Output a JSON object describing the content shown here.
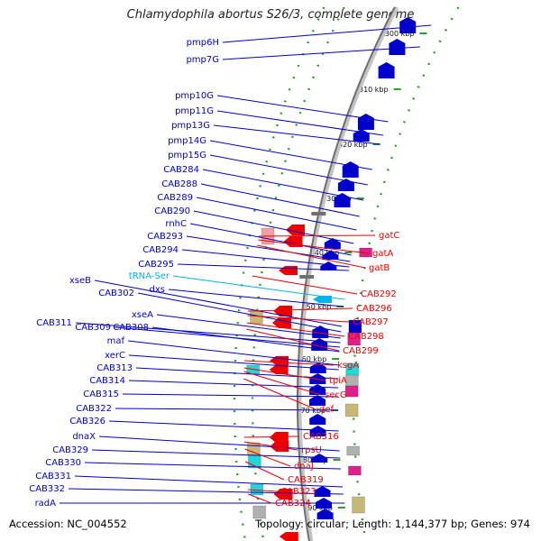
{
  "title": "Chlamydophila abortus S26/3, complete genome",
  "accession_text": "Accession: NC_004552",
  "topology_text": "Topology: circular; Length: 1,144,377 bp; Genes: 974",
  "colors": {
    "backbone": "#9a9a9a",
    "forward_genes": "#0000cc",
    "reverse_genes": "#ee0000",
    "trna": "#00b4e6",
    "tick_dots": "#2f9e2f",
    "cog_magenta": "#e0208a",
    "cog_cyan": "#20d8d8",
    "cog_khaki": "#c8b878",
    "cog_gray": "#b0b0b0",
    "cog_pink": "#f0a0a0"
  },
  "scale_ticks": [
    "300 kbp",
    "310 kbp",
    "320 kbp",
    "330 kbp",
    "340 kbp",
    "350 kbp",
    "360 kbp",
    "370 kbp",
    "380 kbp",
    "390 kbp"
  ],
  "forward_labels": [
    "pmp6H",
    "pmp7G",
    "pmp10G",
    "pmp11G",
    "pmp13G",
    "pmp14G",
    "pmp15G",
    "CAB284",
    "CAB288",
    "CAB289",
    "CAB290",
    "rnhC",
    "CAB293",
    "CAB294",
    "CAB295",
    "tRNA-Ser",
    "dxs",
    "xseB",
    "CAB302",
    "xseA",
    "CAB311",
    "CAB309",
    "CAB308",
    "maf",
    "xerC",
    "CAB313",
    "CAB314",
    "CAB315",
    "CAB322",
    "CAB326",
    "dnaX",
    "CAB329",
    "CAB330",
    "CAB331",
    "CAB332",
    "radA"
  ],
  "reverse_labels": [
    "gatC",
    "gatA",
    "gatB",
    "CAB292",
    "CAB296",
    "CAB297",
    "CAB298",
    "CAB299",
    "ksgA",
    "tpiA",
    "secG",
    "def",
    "CAB316",
    "rpsU",
    "dnaJ",
    "CAB319",
    "CAB323",
    "CAB324"
  ]
}
